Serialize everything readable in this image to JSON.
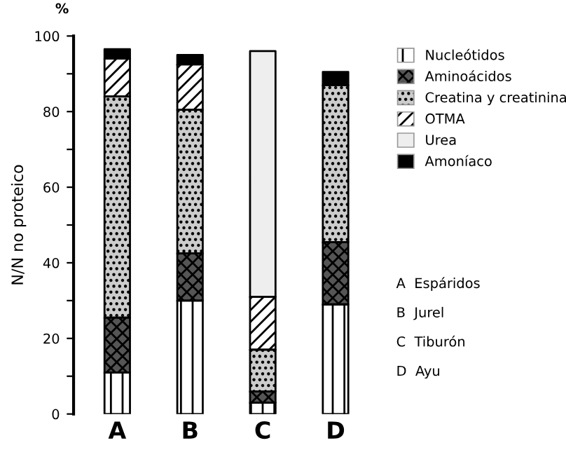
{
  "chart_data": {
    "type": "bar",
    "stacked": true,
    "ylabel": "N/N no proteico",
    "categories": [
      "A",
      "B",
      "C",
      "D"
    ],
    "series": [
      {
        "name": "Nucleótidos",
        "color": "#ffffff",
        "values": [
          11,
          30,
          3,
          29
        ]
      },
      {
        "name": "Aminoácidos",
        "color": "#555555",
        "values": [
          14.5,
          12.5,
          3,
          16.5
        ]
      },
      {
        "name": "Creatina y creatinina",
        "color": "#cccccc",
        "values": [
          58.5,
          38,
          11,
          41.5
        ]
      },
      {
        "name": "OTMA",
        "color": "#ffffff",
        "values": [
          10,
          12,
          14,
          0
        ]
      },
      {
        "name": "Urea",
        "color": "#eeeeee",
        "values": [
          0,
          0,
          65,
          0
        ]
      },
      {
        "name": "Amoníaco",
        "color": "#000000",
        "values": [
          2.5,
          2.5,
          0,
          3.5
        ]
      }
    ],
    "ylim": [
      0,
      100
    ],
    "yticks": [
      0,
      {
        "value": 10,
        "label": null
      },
      20,
      {
        "value": 30,
        "label": null
      },
      40,
      {
        "value": 50,
        "label": null
      },
      60,
      {
        "value": 70,
        "label": null
      },
      80,
      {
        "value": 90,
        "label": null
      },
      100
    ],
    "grid": false,
    "legend": "right",
    "annotations": [
      "%",
      "A  Espáridos",
      "B  Jurel",
      "C  Tiburón",
      "D  Ayu"
    ]
  }
}
